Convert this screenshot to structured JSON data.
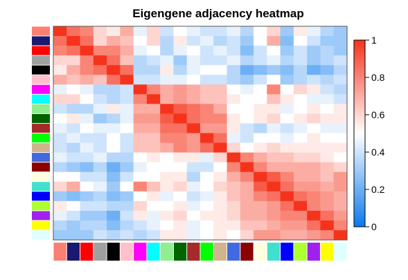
{
  "chart_data": {
    "type": "heatmap",
    "title": "Eigengene adjacency heatmap",
    "modules": [
      "salmon",
      "midnightblue",
      "red",
      "darkgrey",
      "black",
      "pink",
      "magenta",
      "cyan",
      "lightgreen",
      "darkgreen",
      "brown",
      "green",
      "tan",
      "royalblue",
      "darkred",
      "lightyellow",
      "turquoise",
      "blue",
      "greenyellow",
      "purple",
      "yellow",
      "lightcyan"
    ],
    "module_colors": [
      "#FA8072",
      "#191970",
      "#FF0000",
      "#A0A0A0",
      "#000000",
      "#FFC0CB",
      "#FF00FF",
      "#00FFFF",
      "#90EE90",
      "#006400",
      "#A52A2A",
      "#00FF00",
      "#D2B48C",
      "#4169E1",
      "#8B0000",
      "#FFFFE0",
      "#40E0D0",
      "#0000FF",
      "#ADFF2F",
      "#A020F0",
      "#FFFF00",
      "#E0FFFF"
    ],
    "colorbar": {
      "ticks": [
        "0",
        "0.2",
        "0.4",
        "0.6",
        "0.8",
        "1"
      ],
      "range": [
        0,
        1
      ],
      "colors": [
        "#0A7AEE",
        "#FFFFFF",
        "#F5331C"
      ]
    },
    "values": [
      [
        1.0,
        0.85,
        0.8,
        0.6,
        0.55,
        0.7,
        0.45,
        0.6,
        0.4,
        0.5,
        0.45,
        0.4,
        0.4,
        0.45,
        0.35,
        0.5,
        0.6,
        0.3,
        0.55,
        0.45,
        0.35,
        0.3
      ],
      [
        0.85,
        1.0,
        0.85,
        0.6,
        0.7,
        0.65,
        0.5,
        0.6,
        0.35,
        0.55,
        0.4,
        0.45,
        0.35,
        0.4,
        0.3,
        0.5,
        0.7,
        0.25,
        0.5,
        0.4,
        0.3,
        0.3
      ],
      [
        0.8,
        0.85,
        1.0,
        0.8,
        0.8,
        0.7,
        0.45,
        0.5,
        0.35,
        0.45,
        0.5,
        0.4,
        0.45,
        0.4,
        0.25,
        0.4,
        0.5,
        0.3,
        0.4,
        0.3,
        0.35,
        0.3
      ],
      [
        0.6,
        0.6,
        0.8,
        1.0,
        0.85,
        0.65,
        0.35,
        0.4,
        0.45,
        0.3,
        0.45,
        0.4,
        0.4,
        0.45,
        0.35,
        0.4,
        0.45,
        0.35,
        0.4,
        0.3,
        0.35,
        0.4
      ],
      [
        0.55,
        0.7,
        0.8,
        0.85,
        1.0,
        0.85,
        0.35,
        0.35,
        0.55,
        0.35,
        0.45,
        0.5,
        0.5,
        0.35,
        0.2,
        0.25,
        0.3,
        0.25,
        0.35,
        0.2,
        0.25,
        0.35
      ],
      [
        0.7,
        0.65,
        0.7,
        0.65,
        0.85,
        1.0,
        0.4,
        0.4,
        0.45,
        0.45,
        0.5,
        0.4,
        0.4,
        0.35,
        0.3,
        0.4,
        0.5,
        0.3,
        0.35,
        0.4,
        0.35,
        0.4
      ],
      [
        0.45,
        0.5,
        0.45,
        0.35,
        0.35,
        0.4,
        1.0,
        0.8,
        0.7,
        0.75,
        0.7,
        0.65,
        0.65,
        0.5,
        0.45,
        0.5,
        0.8,
        0.5,
        0.6,
        0.55,
        0.4,
        0.35
      ],
      [
        0.6,
        0.6,
        0.5,
        0.4,
        0.35,
        0.4,
        0.8,
        1.0,
        0.7,
        0.75,
        0.7,
        0.65,
        0.65,
        0.55,
        0.5,
        0.5,
        0.65,
        0.55,
        0.5,
        0.45,
        0.45,
        0.4
      ],
      [
        0.4,
        0.35,
        0.35,
        0.45,
        0.55,
        0.45,
        0.7,
        0.7,
        1.0,
        0.9,
        0.85,
        0.8,
        0.7,
        0.5,
        0.5,
        0.55,
        0.55,
        0.45,
        0.5,
        0.55,
        0.5,
        0.55
      ],
      [
        0.5,
        0.55,
        0.45,
        0.3,
        0.35,
        0.45,
        0.75,
        0.75,
        0.9,
        1.0,
        0.85,
        0.8,
        0.8,
        0.55,
        0.5,
        0.55,
        0.6,
        0.5,
        0.55,
        0.6,
        0.55,
        0.55
      ],
      [
        0.45,
        0.4,
        0.5,
        0.45,
        0.45,
        0.5,
        0.7,
        0.7,
        0.85,
        0.85,
        1.0,
        0.75,
        0.75,
        0.55,
        0.4,
        0.35,
        0.45,
        0.4,
        0.45,
        0.5,
        0.45,
        0.45
      ],
      [
        0.4,
        0.45,
        0.4,
        0.4,
        0.5,
        0.4,
        0.65,
        0.65,
        0.8,
        0.8,
        0.75,
        1.0,
        0.85,
        0.45,
        0.4,
        0.5,
        0.5,
        0.45,
        0.5,
        0.55,
        0.5,
        0.5
      ],
      [
        0.4,
        0.35,
        0.45,
        0.4,
        0.5,
        0.4,
        0.65,
        0.65,
        0.7,
        0.8,
        0.75,
        0.85,
        1.0,
        0.6,
        0.5,
        0.55,
        0.6,
        0.55,
        0.55,
        0.55,
        0.55,
        0.55
      ],
      [
        0.45,
        0.4,
        0.4,
        0.45,
        0.35,
        0.35,
        0.5,
        0.55,
        0.5,
        0.55,
        0.55,
        0.45,
        0.6,
        1.0,
        0.8,
        0.7,
        0.65,
        0.65,
        0.6,
        0.6,
        0.55,
        0.5
      ],
      [
        0.35,
        0.3,
        0.25,
        0.35,
        0.2,
        0.3,
        0.45,
        0.5,
        0.5,
        0.5,
        0.4,
        0.4,
        0.5,
        0.8,
        1.0,
        0.8,
        0.7,
        0.7,
        0.7,
        0.7,
        0.65,
        0.6
      ],
      [
        0.5,
        0.5,
        0.4,
        0.4,
        0.25,
        0.4,
        0.5,
        0.5,
        0.55,
        0.55,
        0.35,
        0.5,
        0.55,
        0.7,
        0.8,
        1.0,
        0.9,
        0.8,
        0.7,
        0.7,
        0.65,
        0.75
      ],
      [
        0.6,
        0.7,
        0.5,
        0.45,
        0.3,
        0.5,
        0.8,
        0.65,
        0.55,
        0.6,
        0.45,
        0.5,
        0.6,
        0.65,
        0.7,
        0.9,
        1.0,
        0.85,
        0.75,
        0.75,
        0.7,
        0.75
      ],
      [
        0.3,
        0.25,
        0.3,
        0.35,
        0.25,
        0.3,
        0.5,
        0.55,
        0.45,
        0.5,
        0.4,
        0.45,
        0.55,
        0.65,
        0.7,
        0.8,
        0.85,
        1.0,
        0.85,
        0.8,
        0.75,
        0.7
      ],
      [
        0.55,
        0.5,
        0.4,
        0.4,
        0.35,
        0.35,
        0.6,
        0.5,
        0.5,
        0.55,
        0.45,
        0.5,
        0.55,
        0.6,
        0.7,
        0.7,
        0.75,
        0.85,
        1.0,
        0.8,
        0.75,
        0.7
      ],
      [
        0.45,
        0.4,
        0.3,
        0.3,
        0.2,
        0.4,
        0.55,
        0.45,
        0.55,
        0.6,
        0.5,
        0.55,
        0.55,
        0.6,
        0.7,
        0.7,
        0.75,
        0.8,
        0.8,
        1.0,
        0.85,
        0.75
      ],
      [
        0.35,
        0.3,
        0.35,
        0.35,
        0.25,
        0.35,
        0.4,
        0.45,
        0.5,
        0.55,
        0.45,
        0.5,
        0.55,
        0.55,
        0.65,
        0.65,
        0.7,
        0.75,
        0.75,
        0.85,
        1.0,
        0.8
      ],
      [
        0.3,
        0.3,
        0.3,
        0.4,
        0.35,
        0.4,
        0.35,
        0.4,
        0.55,
        0.55,
        0.45,
        0.5,
        0.55,
        0.5,
        0.6,
        0.75,
        0.75,
        0.7,
        0.7,
        0.75,
        0.8,
        1.0
      ]
    ]
  }
}
